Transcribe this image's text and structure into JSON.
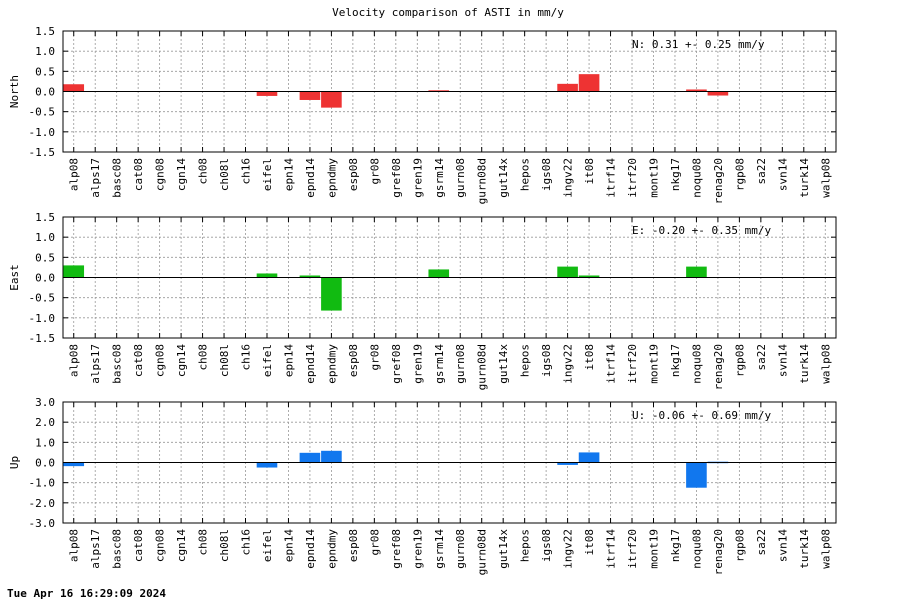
{
  "title": "Velocity comparison of ASTI in mm/y",
  "footer": "Tue Apr 16 16:29:09 2024",
  "chart_data": [
    {
      "type": "bar",
      "ylabel": "North",
      "stat": "N:   0.31 +-  0.25 mm/y",
      "color": "#ee3333",
      "ylim": [
        -1.5,
        1.5
      ],
      "yticks": [
        1.5,
        1.0,
        0.5,
        0.0,
        -0.5,
        -1.0,
        -1.5
      ],
      "ytick_labels": [
        "1.5",
        "1.0",
        "0.5",
        "0.0",
        "-0.5",
        "-1.0",
        "-1.5"
      ],
      "grid": true,
      "categories": [
        "alp08",
        "alps17",
        "basc08",
        "cat08",
        "cgn08",
        "cgn14",
        "ch08",
        "ch08l",
        "ch16",
        "eifel",
        "epn14",
        "epnd14",
        "epndmy",
        "esp08",
        "gr08",
        "gref08",
        "gren19",
        "gsrm14",
        "gurn08",
        "gurn08d",
        "gut14x",
        "hepos",
        "igs08",
        "ingv22",
        "it08",
        "itrf14",
        "itrf20",
        "mont19",
        "nkg17",
        "noqu08",
        "renag20",
        "rgp08",
        "sa22",
        "svn14",
        "turk14",
        "walp08"
      ],
      "values": [
        0.18,
        null,
        null,
        null,
        null,
        null,
        null,
        null,
        null,
        -0.11,
        null,
        -0.21,
        -0.4,
        null,
        null,
        null,
        null,
        0.03,
        null,
        null,
        null,
        null,
        null,
        0.19,
        0.43,
        null,
        null,
        null,
        null,
        0.05,
        -0.1,
        null,
        null,
        null,
        null,
        null
      ]
    },
    {
      "type": "bar",
      "ylabel": "East",
      "stat": "E:  -0.20 +-  0.35 mm/y",
      "color": "#11bb11",
      "ylim": [
        -1.5,
        1.5
      ],
      "yticks": [
        1.5,
        1.0,
        0.5,
        0.0,
        -0.5,
        -1.0,
        -1.5
      ],
      "ytick_labels": [
        "1.5",
        "1.0",
        "0.5",
        "0.0",
        "-0.5",
        "-1.0",
        "-1.5"
      ],
      "grid": true,
      "categories": [
        "alp08",
        "alps17",
        "basc08",
        "cat08",
        "cgn08",
        "cgn14",
        "ch08",
        "ch08l",
        "ch16",
        "eifel",
        "epn14",
        "epnd14",
        "epndmy",
        "esp08",
        "gr08",
        "gref08",
        "gren19",
        "gsrm14",
        "gurn08",
        "gurn08d",
        "gut14x",
        "hepos",
        "igs08",
        "ingv22",
        "it08",
        "itrf14",
        "itrf20",
        "mont19",
        "nkg17",
        "noqu08",
        "renag20",
        "rgp08",
        "sa22",
        "svn14",
        "turk14",
        "walp08"
      ],
      "values": [
        0.3,
        null,
        null,
        null,
        null,
        null,
        null,
        null,
        null,
        0.1,
        null,
        0.05,
        -0.82,
        null,
        null,
        null,
        null,
        0.2,
        null,
        null,
        null,
        null,
        null,
        0.27,
        0.05,
        null,
        null,
        null,
        null,
        0.27,
        null,
        null,
        null,
        null,
        null,
        null
      ]
    },
    {
      "type": "bar",
      "ylabel": "Up",
      "stat": "U:  -0.06 +-  0.69 mm/y",
      "color": "#1177ee",
      "ylim": [
        -3.0,
        3.0
      ],
      "yticks": [
        3.0,
        2.0,
        1.0,
        0.0,
        -1.0,
        -2.0,
        -3.0
      ],
      "ytick_labels": [
        "3.0",
        "2.0",
        "1.0",
        "0.0",
        "-1.0",
        "-2.0",
        "-3.0"
      ],
      "grid": true,
      "categories": [
        "alp08",
        "alps17",
        "basc08",
        "cat08",
        "cgn08",
        "cgn14",
        "ch08",
        "ch08l",
        "ch16",
        "eifel",
        "epn14",
        "epnd14",
        "epndmy",
        "esp08",
        "gr08",
        "gref08",
        "gren19",
        "gsrm14",
        "gurn08",
        "gurn08d",
        "gut14x",
        "hepos",
        "igs08",
        "ingv22",
        "it08",
        "itrf14",
        "itrf20",
        "mont19",
        "nkg17",
        "noqu08",
        "renag20",
        "rgp08",
        "sa22",
        "svn14",
        "turk14",
        "walp08"
      ],
      "values": [
        -0.18,
        null,
        null,
        null,
        null,
        null,
        null,
        null,
        null,
        -0.25,
        null,
        0.48,
        0.58,
        null,
        null,
        null,
        null,
        null,
        null,
        null,
        null,
        null,
        null,
        -0.12,
        0.5,
        null,
        null,
        null,
        null,
        -1.25,
        0.04,
        null,
        null,
        null,
        null,
        null
      ]
    }
  ]
}
